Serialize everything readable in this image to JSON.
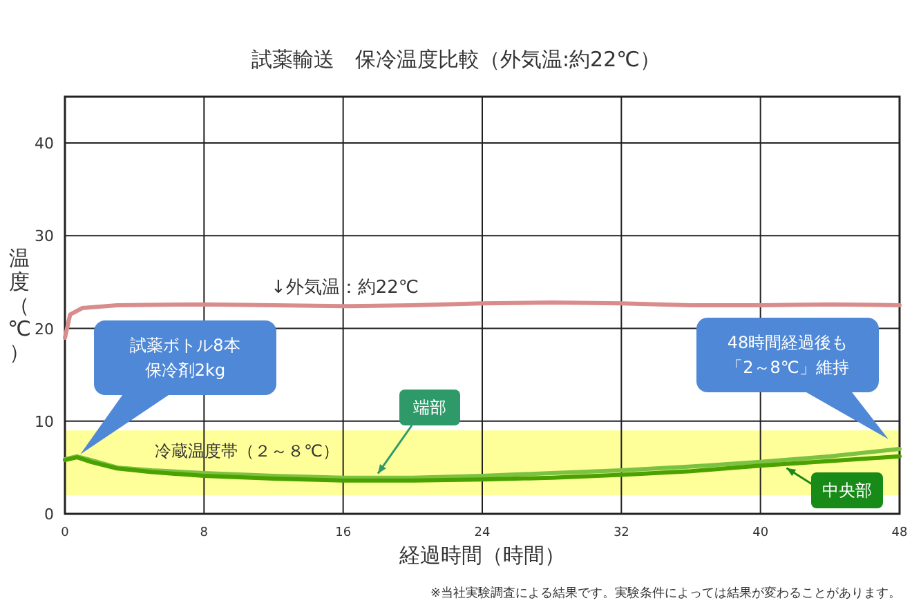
{
  "chart_data": {
    "type": "line",
    "title": "試薬輸送　保冷温度比較（外気温:約22℃）",
    "xlabel": "経過時間（時間）",
    "ylabel": "温度（℃）",
    "xlim": [
      0,
      48
    ],
    "ylim": [
      0,
      45
    ],
    "xticks": [
      0,
      8,
      16,
      24,
      32,
      40,
      48
    ],
    "yticks": [
      0,
      10,
      20,
      30,
      40
    ],
    "grid": true,
    "marker": "none",
    "line_style": "solid",
    "bands": [
      {
        "axis": "y",
        "from": 2,
        "to": 9,
        "label": "冷蔵温度帯（２～８℃）",
        "color": "#ffff99"
      }
    ],
    "series": [
      {
        "name": "↓外気温：約22℃",
        "color": "#d98c8c",
        "x": [
          0,
          0.3,
          1,
          3,
          8,
          12,
          16,
          20,
          24,
          28,
          32,
          36,
          40,
          44,
          48
        ],
        "values": [
          19.0,
          21.5,
          22.2,
          22.5,
          22.6,
          22.5,
          22.4,
          22.5,
          22.7,
          22.8,
          22.7,
          22.5,
          22.5,
          22.6,
          22.5
        ]
      },
      {
        "name": "端部",
        "color": "#7cc242",
        "x": [
          0,
          0.7,
          1.5,
          3,
          5,
          8,
          12,
          16,
          20,
          24,
          28,
          32,
          36,
          40,
          44,
          48
        ],
        "values": [
          5.9,
          6.2,
          5.8,
          5.0,
          4.7,
          4.4,
          4.1,
          3.9,
          3.9,
          4.1,
          4.4,
          4.7,
          5.1,
          5.6,
          6.2,
          7.0
        ]
      },
      {
        "name": "中央部",
        "color": "#4aa100",
        "x": [
          0,
          0.7,
          1.5,
          3,
          5,
          8,
          12,
          16,
          20,
          24,
          28,
          32,
          36,
          40,
          44,
          48
        ],
        "values": [
          5.8,
          6.1,
          5.6,
          4.9,
          4.5,
          4.1,
          3.8,
          3.6,
          3.6,
          3.7,
          3.9,
          4.2,
          4.6,
          5.2,
          5.7,
          6.2
        ]
      }
    ],
    "annotations": [
      "試薬ボトル8本保冷剤2kg",
      "48時間経過後も「2～8℃」維持",
      "※当社実験調査による結果です。実験条件によっては結果が変わることがあります。"
    ]
  }
}
